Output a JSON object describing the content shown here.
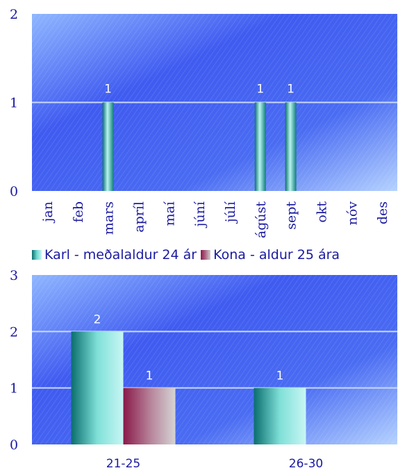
{
  "chart_data": [
    {
      "type": "bar",
      "categories": [
        "jan",
        "feb",
        "mars",
        "apríl",
        "maí",
        "júní",
        "júlí",
        "ágúst",
        "sept",
        "okt",
        "nóv",
        "des"
      ],
      "series": [
        {
          "name": "Karl - meðalaldur 24 ár",
          "values": [
            0,
            0,
            1,
            0,
            0,
            0,
            0,
            1,
            1,
            0,
            0,
            0
          ]
        }
      ],
      "data_labels": [
        "",
        "",
        "1",
        "",
        "",
        "",
        "",
        "1",
        "1",
        "",
        "",
        ""
      ],
      "yticks": [
        "0",
        "1",
        "2"
      ],
      "ylim": [
        0,
        2
      ],
      "grid": true,
      "xlabel": "",
      "ylabel": "",
      "title": ""
    },
    {
      "type": "bar",
      "categories": [
        "21-25",
        "26-30"
      ],
      "series": [
        {
          "name": "Karl - meðalaldur 24 ár",
          "values": [
            2,
            1
          ]
        },
        {
          "name": "Kona - aldur 25 ára",
          "values": [
            1,
            0
          ]
        }
      ],
      "data_labels": [
        [
          "2",
          "1"
        ],
        [
          "1",
          ""
        ]
      ],
      "yticks": [
        "0",
        "1",
        "2",
        "3"
      ],
      "ylim": [
        0,
        3
      ],
      "grid": true,
      "xlabel": "",
      "ylabel": "",
      "title": ""
    }
  ],
  "legend": {
    "placement": "between charts",
    "items": [
      {
        "label": "Karl - meðalaldur 24 ár",
        "color": "#2fa3a0"
      },
      {
        "label": "Kona - aldur 25 ára",
        "color": "#a0406a"
      }
    ]
  },
  "colors": {
    "plot_top": "#3a55f0",
    "plot_bottom": "#9fc4ff",
    "gridline": "#c8d8ff",
    "text": "#1a1aa0"
  }
}
